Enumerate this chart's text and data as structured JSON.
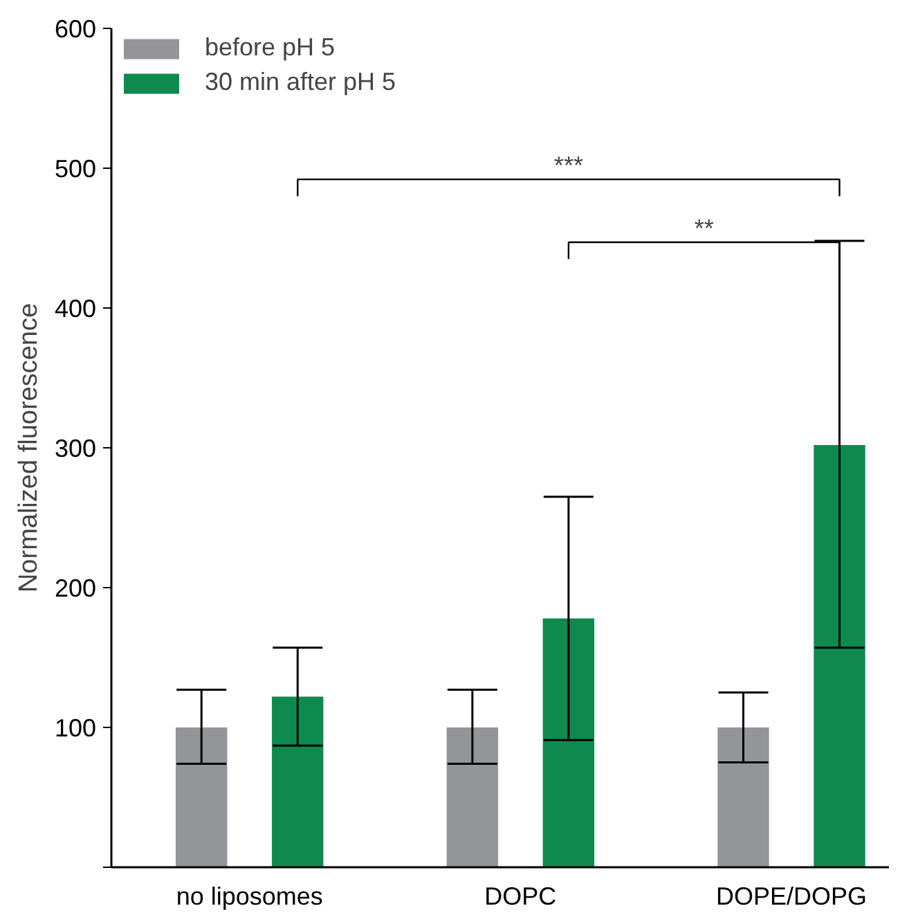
{
  "chart_data": {
    "type": "bar",
    "ylabel": "Normalized fluorescence",
    "categories": [
      "no liposomes",
      "DOPC",
      "DOPE/DOPG"
    ],
    "series": [
      {
        "name": "before pH 5",
        "color": "#939598",
        "values": [
          100,
          100,
          100
        ],
        "errors": [
          [
            74,
            127
          ],
          [
            74,
            127
          ],
          [
            75,
            125
          ]
        ]
      },
      {
        "name": "30 min after pH 5",
        "color": "#0f8a4f",
        "values": [
          122,
          178,
          302
        ],
        "errors": [
          [
            87,
            157
          ],
          [
            91,
            265
          ],
          [
            157,
            448
          ]
        ]
      }
    ],
    "ylim": [
      0,
      600
    ],
    "yticks": [
      {
        "value": 0,
        "label": null
      },
      100,
      200,
      300,
      400,
      500,
      600
    ],
    "annotations": [
      "***",
      "**"
    ],
    "grid": false,
    "legend": "top left"
  }
}
